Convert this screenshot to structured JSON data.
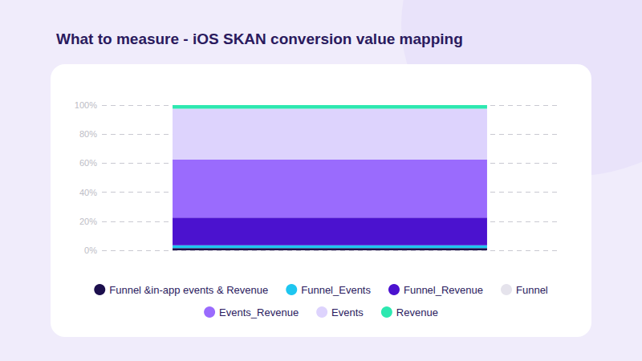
{
  "chart_data": {
    "type": "bar",
    "title": "What to measure - iOS SKAN conversion value mapping",
    "categories": [
      null
    ],
    "stacked": true,
    "grid": true,
    "legend": "bottom",
    "tick_labels": "y",
    "ylim": [
      0,
      100
    ],
    "yticks": [
      {
        "value": 0,
        "label": "0%"
      },
      {
        "value": 20,
        "label": "20%"
      },
      {
        "value": 40,
        "label": "40%"
      },
      {
        "value": 60,
        "label": "60%"
      },
      {
        "value": 80,
        "label": "80%"
      },
      {
        "value": 100,
        "label": "100%"
      }
    ],
    "series": [
      {
        "name": "Funnel &in-app events & Revenue",
        "color": "#1c0f4d",
        "values": [
          1.5
        ]
      },
      {
        "name": "Funnel_Events",
        "color": "#1ec6f0",
        "values": [
          2
        ]
      },
      {
        "name": "Funnel_Revenue",
        "color": "#4b12cf",
        "values": [
          19
        ]
      },
      {
        "name": "Funnel",
        "color": "#e5e3ec",
        "values": [
          0
        ]
      },
      {
        "name": "Events_Revenue",
        "color": "#9a6bfd",
        "values": [
          40
        ]
      },
      {
        "name": "Events",
        "color": "#ddd3fd",
        "values": [
          35
        ]
      },
      {
        "name": "Revenue",
        "color": "#2de8b0",
        "values": [
          2.5
        ]
      }
    ]
  }
}
